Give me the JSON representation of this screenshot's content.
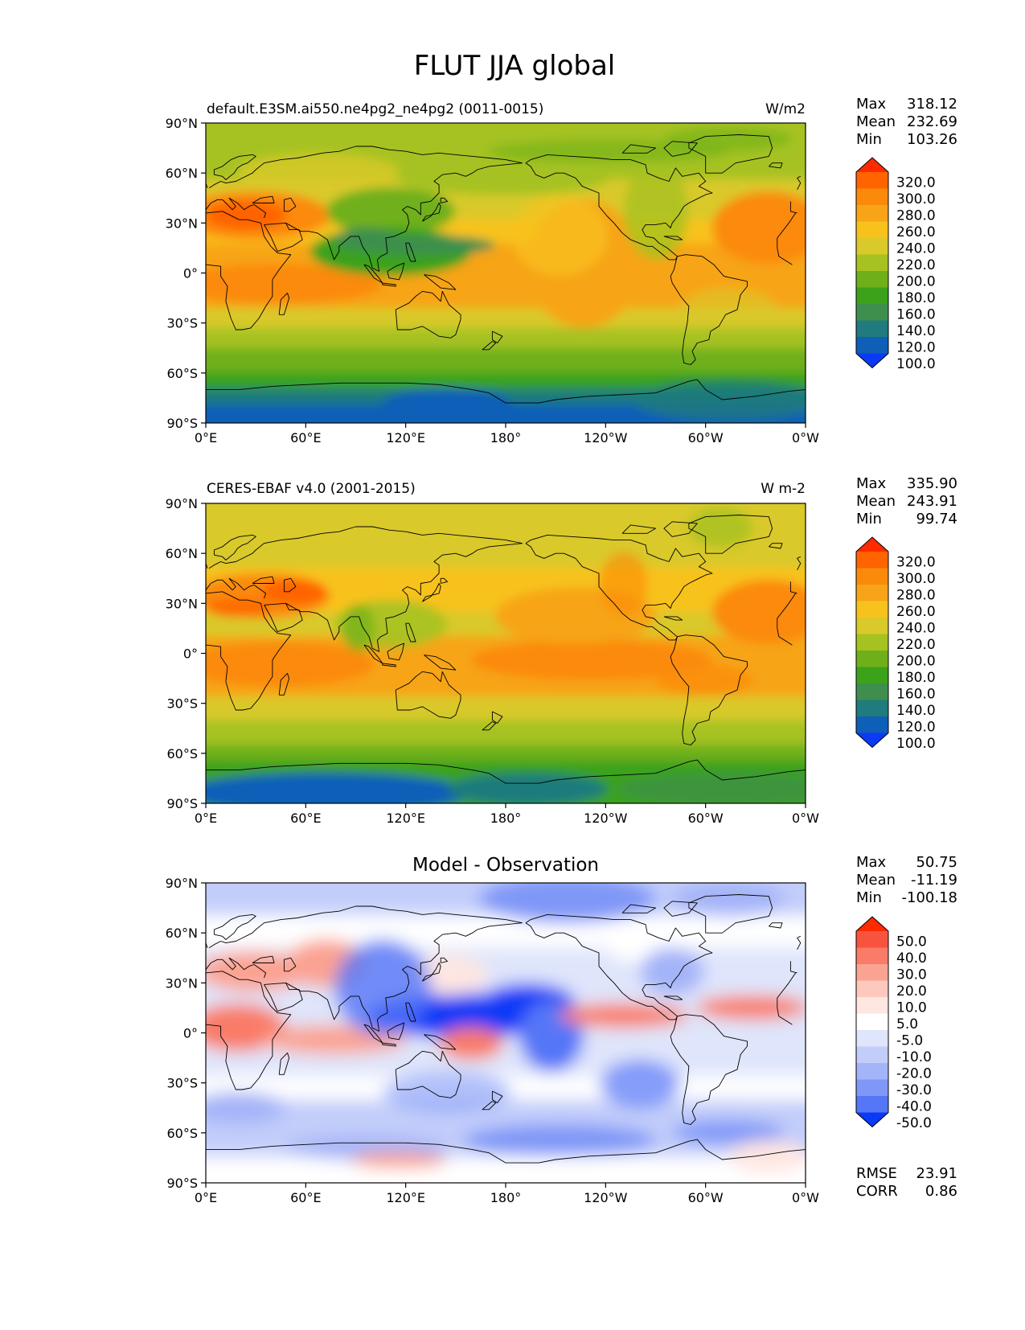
{
  "figure": {
    "title": "FLUT JJA global"
  },
  "panels": [
    {
      "left_title": "default.E3SM.ai550.ne4pg2_ne4pg2 (0011-0015)",
      "center_title": "",
      "units": "W/m2",
      "stats": [
        {
          "label": "Max",
          "value": "318.12"
        },
        {
          "label": "Mean",
          "value": "232.69"
        },
        {
          "label": "Min",
          "value": "103.26"
        }
      ],
      "colorbar_levels": [
        "320.0",
        "300.0",
        "280.0",
        "260.0",
        "240.0",
        "220.0",
        "200.0",
        "180.0",
        "160.0",
        "140.0",
        "120.0",
        "100.0"
      ],
      "colorbar_colors": [
        "#ff2a00",
        "#ff6400",
        "#fb8a0a",
        "#f7a418",
        "#f8c21c",
        "#d9c92a",
        "#a6c221",
        "#6fb01a",
        "#3ba21a",
        "#3e8f4d",
        "#1f7b7d",
        "#0e5fb8",
        "#0b3af7"
      ],
      "map_type": "model"
    },
    {
      "left_title": "CERES-EBAF v4.0 (2001-2015)",
      "center_title": "",
      "units": "W m-2",
      "stats": [
        {
          "label": "Max",
          "value": "335.90"
        },
        {
          "label": "Mean",
          "value": "243.91"
        },
        {
          "label": "Min",
          "value": "99.74"
        }
      ],
      "colorbar_levels": [
        "320.0",
        "300.0",
        "280.0",
        "260.0",
        "240.0",
        "220.0",
        "200.0",
        "180.0",
        "160.0",
        "140.0",
        "120.0",
        "100.0"
      ],
      "colorbar_colors": [
        "#ff2a00",
        "#ff6400",
        "#fb8a0a",
        "#f7a418",
        "#f8c21c",
        "#d9c92a",
        "#a6c221",
        "#6fb01a",
        "#3ba21a",
        "#3e8f4d",
        "#1f7b7d",
        "#0e5fb8",
        "#0b3af7"
      ],
      "map_type": "obs"
    },
    {
      "left_title": "",
      "center_title": "Model - Observation",
      "units": "",
      "stats": [
        {
          "label": "Max",
          "value": "50.75"
        },
        {
          "label": "Mean",
          "value": "-11.19"
        },
        {
          "label": "Min",
          "value": "-100.18"
        }
      ],
      "colorbar_levels": [
        "50.0",
        "40.0",
        "30.0",
        "20.0",
        "10.0",
        "5.0",
        "-5.0",
        "-10.0",
        "-20.0",
        "-30.0",
        "-40.0",
        "-50.0"
      ],
      "colorbar_colors": [
        "#ff2a00",
        "#f8533f",
        "#f97b68",
        "#fba392",
        "#fdc8bd",
        "#fee6e1",
        "#ffffff",
        "#dfe5fb",
        "#c2cdfa",
        "#a4b4f8",
        "#7f97f7",
        "#5576f7",
        "#0b3af7"
      ],
      "extra_stats": [
        {
          "label": "RMSE",
          "value": "23.91"
        },
        {
          "label": "CORR",
          "value": "0.86"
        }
      ],
      "map_type": "diff"
    }
  ],
  "axes": {
    "x_ticks": [
      "0°E",
      "60°E",
      "120°E",
      "180°",
      "120°W",
      "60°W",
      "0°W"
    ],
    "y_ticks": [
      "90°N",
      "60°N",
      "30°N",
      "0°",
      "30°S",
      "60°S",
      "90°S"
    ]
  },
  "chart_data": [
    {
      "type": "heatmap",
      "title": "default.E3SM.ai550.ne4pg2_ne4pg2 (0011-0015)",
      "units": "W/m2",
      "x_range": [
        0,
        360
      ],
      "y_range": [
        -90,
        90
      ],
      "stats": {
        "max": 318.12,
        "mean": 232.69,
        "min": 103.26
      },
      "levels": [
        100,
        120,
        140,
        160,
        180,
        200,
        220,
        240,
        260,
        280,
        300,
        320
      ]
    },
    {
      "type": "heatmap",
      "title": "CERES-EBAF v4.0 (2001-2015)",
      "units": "W m-2",
      "x_range": [
        0,
        360
      ],
      "y_range": [
        -90,
        90
      ],
      "stats": {
        "max": 335.9,
        "mean": 243.91,
        "min": 99.74
      },
      "levels": [
        100,
        120,
        140,
        160,
        180,
        200,
        220,
        240,
        260,
        280,
        300,
        320
      ]
    },
    {
      "type": "heatmap",
      "title": "Model - Observation",
      "x_range": [
        0,
        360
      ],
      "y_range": [
        -90,
        90
      ],
      "stats": {
        "max": 50.75,
        "mean": -11.19,
        "min": -100.18,
        "rmse": 23.91,
        "corr": 0.86
      },
      "levels": [
        -50,
        -40,
        -30,
        -20,
        -10,
        -5,
        5,
        10,
        20,
        30,
        40,
        50
      ]
    }
  ]
}
